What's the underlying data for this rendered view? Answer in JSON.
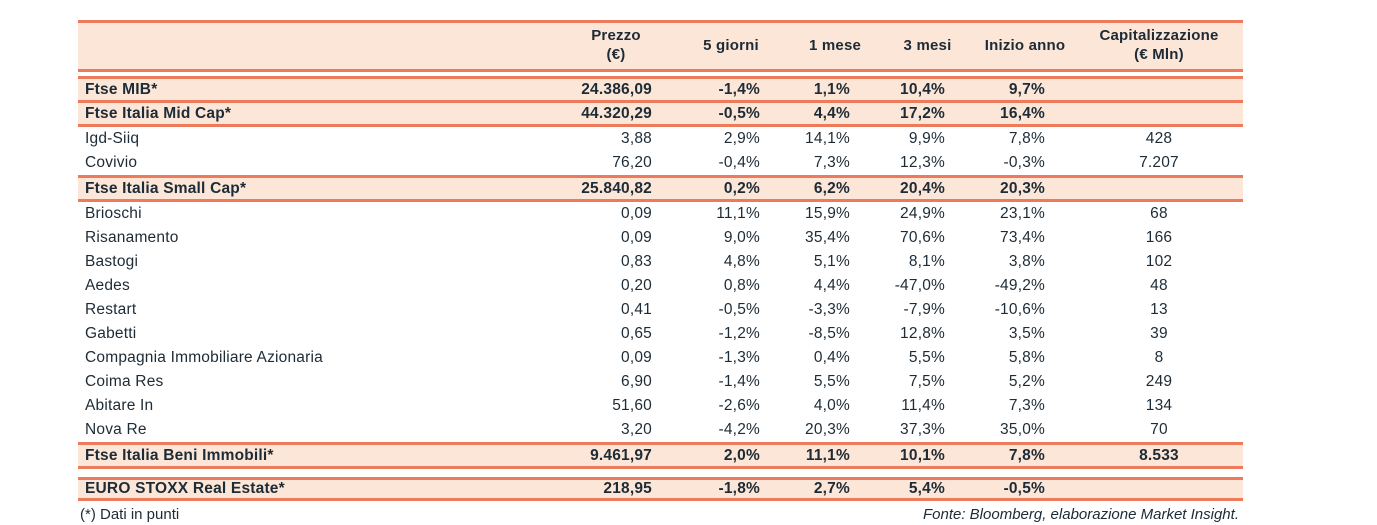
{
  "colors": {
    "accent_border": "#ED7A5B",
    "row_highlight_bg": "#FBE6D7",
    "text": "#1D2B36",
    "page_bg": "#FFFFFF"
  },
  "table": {
    "header": {
      "name": "",
      "prezzo1": "Prezzo",
      "prezzo2": "(€)",
      "d5": "5 giorni",
      "m1": "1 mese",
      "m3": "3 mesi",
      "ytd": "Inizio anno",
      "cap1": "Capitalizzazione",
      "cap2": "(€ Mln)"
    },
    "rows": [
      {
        "type": "index",
        "name": "Ftse MIB*",
        "prezzo": "24.386,09",
        "d5": "-1,4%",
        "m1": "1,1%",
        "m3": "10,4%",
        "ytd": "9,7%",
        "cap": ""
      },
      {
        "type": "index",
        "name": "Ftse Italia Mid Cap*",
        "prezzo": "44.320,29",
        "d5": "-0,5%",
        "m1": "4,4%",
        "m3": "17,2%",
        "ytd": "16,4%",
        "cap": ""
      },
      {
        "type": "stock",
        "name": "Igd-Siiq",
        "prezzo": "3,88",
        "d5": "2,9%",
        "m1": "14,1%",
        "m3": "9,9%",
        "ytd": "7,8%",
        "cap": "428"
      },
      {
        "type": "stock",
        "name": "Covivio",
        "prezzo": "76,20",
        "d5": "-0,4%",
        "m1": "7,3%",
        "m3": "12,3%",
        "ytd": "-0,3%",
        "cap": "7.207"
      },
      {
        "type": "index",
        "name": "Ftse Italia Small Cap*",
        "prezzo": "25.840,82",
        "d5": "0,2%",
        "m1": "6,2%",
        "m3": "20,4%",
        "ytd": "20,3%",
        "cap": ""
      },
      {
        "type": "stock",
        "name": "Brioschi",
        "prezzo": "0,09",
        "d5": "11,1%",
        "m1": "15,9%",
        "m3": "24,9%",
        "ytd": "23,1%",
        "cap": "68"
      },
      {
        "type": "stock",
        "name": "Risanamento",
        "prezzo": "0,09",
        "d5": "9,0%",
        "m1": "35,4%",
        "m3": "70,6%",
        "ytd": "73,4%",
        "cap": "166"
      },
      {
        "type": "stock",
        "name": "Bastogi",
        "prezzo": "0,83",
        "d5": "4,8%",
        "m1": "5,1%",
        "m3": "8,1%",
        "ytd": "3,8%",
        "cap": "102"
      },
      {
        "type": "stock",
        "name": "Aedes",
        "prezzo": "0,20",
        "d5": "0,8%",
        "m1": "4,4%",
        "m3": "-47,0%",
        "ytd": "-49,2%",
        "cap": "48"
      },
      {
        "type": "stock",
        "name": "Restart",
        "prezzo": "0,41",
        "d5": "-0,5%",
        "m1": "-3,3%",
        "m3": "-7,9%",
        "ytd": "-10,6%",
        "cap": "13"
      },
      {
        "type": "stock",
        "name": "Gabetti",
        "prezzo": "0,65",
        "d5": "-1,2%",
        "m1": "-8,5%",
        "m3": "12,8%",
        "ytd": "3,5%",
        "cap": "39"
      },
      {
        "type": "stock",
        "name": "Compagnia Immobiliare Azionaria",
        "prezzo": "0,09",
        "d5": "-1,3%",
        "m1": "0,4%",
        "m3": "5,5%",
        "ytd": "5,8%",
        "cap": "8"
      },
      {
        "type": "stock",
        "name": "Coima Res",
        "prezzo": "6,90",
        "d5": "-1,4%",
        "m1": "5,5%",
        "m3": "7,5%",
        "ytd": "5,2%",
        "cap": "249"
      },
      {
        "type": "stock",
        "name": "Abitare In",
        "prezzo": "51,60",
        "d5": "-2,6%",
        "m1": "4,0%",
        "m3": "11,4%",
        "ytd": "7,3%",
        "cap": "134"
      },
      {
        "type": "stock",
        "name": "Nova Re",
        "prezzo": "3,20",
        "d5": "-4,2%",
        "m1": "20,3%",
        "m3": "37,3%",
        "ytd": "35,0%",
        "cap": "70"
      },
      {
        "type": "index",
        "name": "Ftse Italia Beni Immobili*",
        "prezzo": "9.461,97",
        "d5": "2,0%",
        "m1": "11,1%",
        "m3": "10,1%",
        "ytd": "7,8%",
        "cap": "8.533"
      }
    ],
    "euro_row": {
      "type": "index",
      "name": "EURO STOXX Real Estate*",
      "prezzo": "218,95",
      "d5": "-1,8%",
      "m1": "2,7%",
      "m3": "5,4%",
      "ytd": "-0,5%",
      "cap": ""
    }
  },
  "footer": {
    "note": "(*) Dati in punti",
    "source": "Fonte: Bloomberg, elaborazione Market Insight."
  }
}
